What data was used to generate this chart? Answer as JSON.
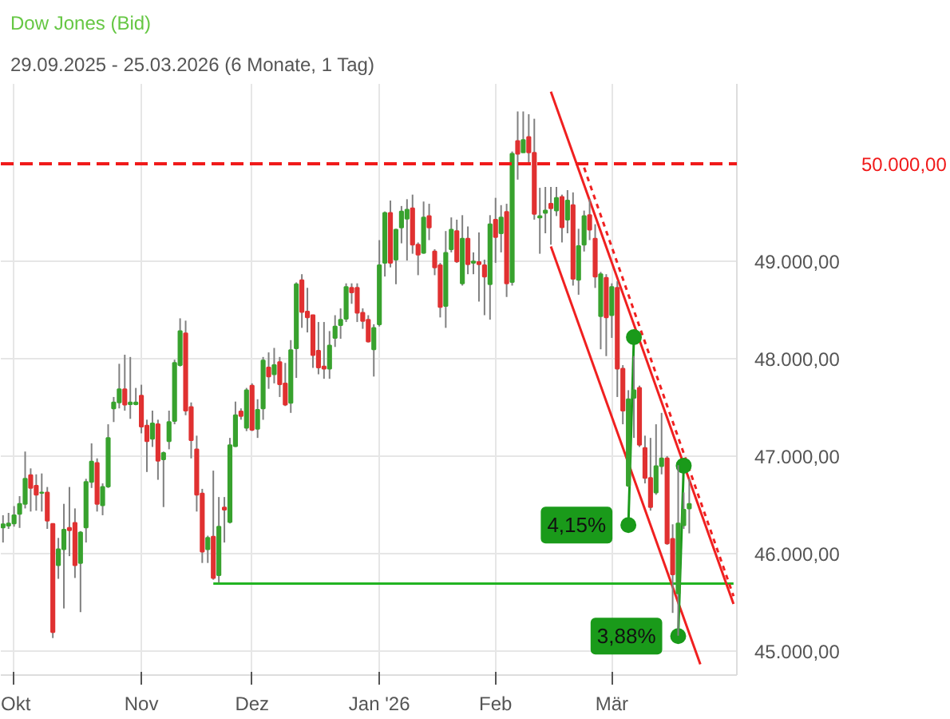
{
  "chart_data": {
    "type": "candlestick",
    "title": "Dow Jones (Bid)",
    "subtitle": "29.09.2025 - 25.03.2026  (6 Monate, 1 Tag)",
    "categories": [
      null,
      null,
      "Okt",
      null,
      null,
      null,
      null,
      null,
      null,
      null,
      null,
      null,
      null,
      null,
      null,
      null,
      null,
      null,
      null,
      null,
      null,
      null,
      null,
      null,
      null,
      "Nov",
      null,
      null,
      null,
      null,
      null,
      null,
      null,
      null,
      null,
      null,
      null,
      null,
      null,
      null,
      null,
      null,
      null,
      null,
      null,
      "Dez",
      null,
      null,
      null,
      null,
      null,
      null,
      null,
      null,
      null,
      null,
      null,
      null,
      null,
      null,
      null,
      null,
      null,
      null,
      null,
      null,
      null,
      null,
      "Jan '26",
      null,
      null,
      null,
      null,
      null,
      null,
      null,
      null,
      null,
      null,
      null,
      null,
      null,
      null,
      null,
      null,
      null,
      null,
      null,
      null,
      "Feb",
      null,
      null,
      null,
      null,
      null,
      null,
      null,
      null,
      null,
      null,
      null,
      null,
      null,
      null,
      null,
      null,
      null,
      null,
      null,
      null,
      "Mär",
      null,
      null,
      null,
      null,
      null,
      null,
      null,
      null,
      null,
      null,
      null,
      null,
      null,
      null,
      null,
      null,
      null,
      null,
      null,
      null,
      null,
      null
    ],
    "ohlc": [
      [
        46265,
        46391,
        46111,
        46298
      ],
      [
        46284,
        46415,
        46251,
        46307
      ],
      [
        46307,
        46485,
        46274,
        46391
      ],
      [
        46405,
        46587,
        46261,
        46508
      ],
      [
        46508,
        47045,
        46461,
        46765
      ],
      [
        46802,
        46872,
        46429,
        46671
      ],
      [
        46694,
        46811,
        46438,
        46601
      ],
      [
        46620,
        46820,
        46429,
        46625
      ],
      [
        46625,
        46681,
        46251,
        46335
      ],
      [
        46303,
        46303,
        45130,
        45191
      ],
      [
        45878,
        46158,
        45738,
        46041
      ],
      [
        46041,
        46508,
        45434,
        46242
      ],
      [
        46261,
        46681,
        45971,
        46237
      ],
      [
        46312,
        46461,
        45747,
        45878
      ],
      [
        45901,
        46228,
        45396,
        46214
      ],
      [
        46265,
        46765,
        46111,
        46732
      ],
      [
        46732,
        47129,
        46671,
        46942
      ],
      [
        46928,
        46975,
        46429,
        46508
      ],
      [
        46494,
        46718,
        46391,
        46681
      ],
      [
        46685,
        47325,
        46671,
        47185
      ],
      [
        47488,
        47605,
        47348,
        47549
      ],
      [
        47549,
        47946,
        47488,
        47684
      ],
      [
        47684,
        48039,
        47465,
        47526
      ],
      [
        47530,
        48016,
        47381,
        47549
      ],
      [
        47530,
        47698,
        47520,
        47549
      ],
      [
        47619,
        47731,
        47232,
        47302
      ],
      [
        47311,
        47372,
        46835,
        47152
      ],
      [
        47176,
        47465,
        47092,
        47334
      ],
      [
        47325,
        47372,
        46755,
        46951
      ],
      [
        46965,
        47045,
        46475,
        47031
      ],
      [
        47152,
        47465,
        47068,
        47348
      ],
      [
        47358,
        47988,
        47325,
        47955
      ],
      [
        47932,
        48413,
        47918,
        48282
      ],
      [
        48259,
        48389,
        47418,
        47465
      ],
      [
        47502,
        47549,
        46975,
        47162
      ],
      [
        47068,
        47208,
        46429,
        46601
      ],
      [
        46615,
        46662,
        45901,
        46018
      ],
      [
        46041,
        46181,
        45901,
        46158
      ],
      [
        46172,
        46849,
        45729,
        45747
      ],
      [
        45775,
        46578,
        45700,
        46274
      ],
      [
        46470,
        46578,
        46111,
        46447
      ],
      [
        46321,
        47185,
        46307,
        47110
      ],
      [
        47101,
        47558,
        47092,
        47418
      ],
      [
        47456,
        47488,
        47372,
        47409
      ],
      [
        47288,
        47698,
        47255,
        47675
      ],
      [
        47722,
        47745,
        47255,
        47269
      ],
      [
        47278,
        47582,
        47185,
        47474
      ],
      [
        47488,
        48016,
        47371,
        47979
      ],
      [
        47909,
        48063,
        47689,
        47815
      ],
      [
        47838,
        48109,
        47745,
        47932
      ],
      [
        47964,
        48016,
        47605,
        47736
      ],
      [
        47745,
        47955,
        47512,
        47526
      ],
      [
        47545,
        48189,
        47442,
        48086
      ],
      [
        48105,
        48782,
        47801,
        48763
      ],
      [
        48805,
        48866,
        48315,
        48478
      ],
      [
        48483,
        48726,
        48268,
        48422
      ],
      [
        48445,
        48445,
        47904,
        48035
      ],
      [
        48081,
        48375,
        47838,
        47909
      ],
      [
        47918,
        48375,
        47792,
        47895
      ],
      [
        47895,
        48282,
        47792,
        48133
      ],
      [
        48212,
        48445,
        48119,
        48329
      ],
      [
        48343,
        48515,
        48203,
        48399
      ],
      [
        48408,
        48772,
        48375,
        48735
      ],
      [
        48726,
        48772,
        48562,
        48679
      ],
      [
        48726,
        48772,
        48375,
        48469
      ],
      [
        48469,
        48515,
        48305,
        48385
      ],
      [
        48399,
        48445,
        48165,
        48175
      ],
      [
        48095,
        48352,
        47815,
        48315
      ],
      [
        48352,
        49216,
        48329,
        48959
      ],
      [
        48982,
        49510,
        48842,
        49496
      ],
      [
        49496,
        49622,
        48936,
        48982
      ],
      [
        49015,
        49332,
        48763,
        49323
      ],
      [
        49346,
        49566,
        49183,
        49510
      ],
      [
        49435,
        49636,
        49006,
        49528
      ],
      [
        49542,
        49683,
        49076,
        49169
      ],
      [
        49169,
        49192,
        48856,
        49066
      ],
      [
        49085,
        49612,
        49076,
        49449
      ],
      [
        49463,
        49589,
        49216,
        49346
      ],
      [
        49099,
        49122,
        48856,
        48936
      ],
      [
        48959,
        48982,
        48422,
        48529
      ],
      [
        48539,
        49309,
        48315,
        49085
      ],
      [
        49122,
        49449,
        49090,
        49323
      ],
      [
        49309,
        49426,
        48982,
        48996
      ],
      [
        48772,
        49472,
        48749,
        49230
      ],
      [
        49230,
        49356,
        48866,
        48968
      ],
      [
        48982,
        49090,
        48866,
        48996
      ],
      [
        48991,
        49295,
        48585,
        48968
      ],
      [
        48959,
        49015,
        48445,
        48842
      ],
      [
        48763,
        49472,
        48399,
        49379
      ],
      [
        49426,
        49650,
        48982,
        49248
      ],
      [
        49286,
        49575,
        49090,
        49449
      ],
      [
        49505,
        49589,
        48632,
        48772
      ],
      [
        48786,
        50126,
        48749,
        50103
      ],
      [
        50233,
        50537,
        49837,
        50103
      ],
      [
        50117,
        50537,
        50117,
        50243
      ],
      [
        50275,
        50509,
        49986,
        50117
      ],
      [
        50112,
        50462,
        49426,
        49486
      ],
      [
        49449,
        49753,
        49076,
        49463
      ],
      [
        49496,
        49762,
        49286,
        49519
      ],
      [
        49589,
        49762,
        49169,
        49542
      ],
      [
        49519,
        49762,
        49463,
        49650
      ],
      [
        49659,
        49683,
        49192,
        49347
      ],
      [
        49426,
        49729,
        49286,
        49622
      ],
      [
        49575,
        49706,
        48749,
        48819
      ],
      [
        48809,
        49332,
        48655,
        49155
      ],
      [
        49169,
        49519,
        49099,
        49463
      ],
      [
        49472,
        49636,
        49216,
        49323
      ],
      [
        49230,
        49379,
        48725,
        48842
      ],
      [
        48436,
        48889,
        48095,
        48866
      ],
      [
        48828,
        48866,
        48025,
        48422
      ],
      [
        48445,
        48772,
        48212,
        48735
      ],
      [
        48726,
        48796,
        47605,
        47895
      ],
      [
        47895,
        47932,
        47325,
        47465
      ],
      [
        46695,
        47675,
        46681,
        47582
      ],
      [
        47596,
        48025,
        47185,
        47675
      ],
      [
        47698,
        47722,
        47092,
        47115
      ],
      [
        47082,
        47208,
        46718,
        46774
      ],
      [
        46774,
        47185,
        46438,
        46475
      ],
      [
        46625,
        47325,
        46601,
        46895
      ],
      [
        46895,
        47442,
        46811,
        46975
      ],
      [
        46975,
        46998,
        46088,
        46102
      ],
      [
        46149,
        46298,
        45388,
        45784
      ],
      [
        45588,
        46905,
        45154,
        46307
      ],
      [
        46288,
        46625,
        46251,
        46447
      ],
      [
        46461,
        46765,
        46205,
        46508
      ],
      null,
      null,
      null,
      null,
      null,
      null,
      null,
      null
    ],
    "colors": [
      "#38a22e",
      "#38a22e",
      "#38a22e",
      "#38a22e",
      "#38a22e",
      "#e03131",
      "#e03131",
      "#38a22e",
      "#e03131",
      "#e03131",
      "#38a22e",
      "#38a22e",
      "#e03131",
      "#e03131",
      "#38a22e",
      "#38a22e",
      "#38a22e",
      "#e03131",
      "#38a22e",
      "#38a22e",
      "#38a22e",
      "#38a22e",
      "#e03131",
      "#38a22e",
      "#38a22e",
      "#e03131",
      "#e03131",
      "#38a22e",
      "#e03131",
      "#38a22e",
      "#38a22e",
      "#38a22e",
      "#38a22e",
      "#e03131",
      "#e03131",
      "#e03131",
      "#e03131",
      "#38a22e",
      "#e03131",
      "#38a22e",
      "#e03131",
      "#38a22e",
      "#38a22e",
      "#e03131",
      "#38a22e",
      "#e03131",
      "#38a22e",
      "#38a22e",
      "#e03131",
      "#38a22e",
      "#e03131",
      "#e03131",
      "#38a22e",
      "#38a22e",
      "#e03131",
      "#e03131",
      "#e03131",
      "#e03131",
      "#e03131",
      "#38a22e",
      "#38a22e",
      "#38a22e",
      "#38a22e",
      "#e03131",
      "#e03131",
      "#e03131",
      "#e03131",
      "#38a22e",
      "#38a22e",
      "#38a22e",
      "#e03131",
      "#38a22e",
      "#38a22e",
      "#38a22e",
      "#e03131",
      "#e03131",
      "#38a22e",
      "#e03131",
      "#e03131",
      "#e03131",
      "#38a22e",
      "#38a22e",
      "#e03131",
      "#38a22e",
      "#e03131",
      "#38a22e",
      "#e03131",
      "#e03131",
      "#38a22e",
      "#e03131",
      "#38a22e",
      "#e03131",
      "#38a22e",
      "#e03131",
      "#38a22e",
      "#e03131",
      "#e03131",
      "#38a22e",
      "#38a22e",
      "#e03131",
      "#38a22e",
      "#e03131",
      "#38a22e",
      "#e03131",
      "#38a22e",
      "#38a22e",
      "#e03131",
      "#e03131",
      "#38a22e",
      "#e03131",
      "#38a22e",
      "#e03131",
      "#e03131",
      "#38a22e",
      "#38a22e",
      "#e03131",
      "#e03131",
      "#e03131",
      "#38a22e",
      "#38a22e",
      "#e03131",
      "#e03131",
      "#38a22e",
      "#38a22e",
      "#38a22e",
      null,
      null,
      null,
      null,
      null,
      null,
      null,
      null
    ],
    "series": [
      {
        "type": "line",
        "color": "#22b422",
        "line_style": "solid",
        "values": [
          null,
          null,
          null,
          null,
          null,
          null,
          null,
          null,
          null,
          null,
          null,
          null,
          null,
          null,
          null,
          null,
          null,
          null,
          null,
          null,
          null,
          null,
          null,
          null,
          null,
          null,
          null,
          null,
          null,
          null,
          null,
          null,
          null,
          null,
          null,
          null,
          null,
          null,
          45690,
          null,
          null,
          null,
          null,
          null,
          null,
          null,
          null,
          null,
          null,
          null,
          null,
          null,
          null,
          null,
          null,
          null,
          null,
          null,
          null,
          null,
          null,
          null,
          null,
          null,
          null,
          null,
          null,
          null,
          null,
          null,
          null,
          null,
          null,
          null,
          null,
          null,
          null,
          null,
          null,
          null,
          null,
          null,
          null,
          null,
          null,
          null,
          null,
          null,
          null,
          null,
          null,
          null,
          null,
          null,
          null,
          null,
          null,
          null,
          null,
          null,
          null,
          null,
          null,
          null,
          null,
          null,
          null,
          null,
          null,
          null,
          null,
          null,
          null,
          null,
          null,
          null,
          null,
          null,
          null,
          null,
          null,
          null,
          null,
          null,
          null,
          null,
          null,
          null,
          null,
          null,
          null,
          null,
          45690
        ]
      },
      {
        "type": "line",
        "color": "#f02020",
        "line_style": "solid",
        "values": [
          null,
          null,
          null,
          null,
          null,
          null,
          null,
          null,
          null,
          null,
          null,
          null,
          null,
          null,
          null,
          null,
          null,
          null,
          null,
          null,
          null,
          null,
          null,
          null,
          null,
          null,
          null,
          null,
          null,
          null,
          null,
          null,
          null,
          null,
          null,
          null,
          null,
          null,
          null,
          null,
          null,
          null,
          null,
          null,
          null,
          null,
          null,
          null,
          null,
          null,
          null,
          null,
          null,
          null,
          null,
          null,
          null,
          null,
          null,
          null,
          null,
          null,
          null,
          null,
          null,
          null,
          null,
          null,
          null,
          null,
          null,
          null,
          null,
          null,
          null,
          null,
          null,
          null,
          null,
          null,
          null,
          null,
          null,
          null,
          null,
          null,
          null,
          null,
          null,
          null,
          null,
          null,
          null,
          null,
          null,
          null,
          null,
          null,
          null,
          50740,
          null,
          null,
          null,
          null,
          null,
          null,
          null,
          null,
          null,
          null,
          null,
          null,
          null,
          null,
          null,
          null,
          null,
          null,
          null,
          null,
          null,
          null,
          null,
          null,
          null,
          null,
          null,
          null,
          null,
          null,
          null,
          null,
          45480
        ]
      },
      {
        "type": "line",
        "color": "#f02020",
        "line_style": "solid",
        "values": [
          null,
          null,
          null,
          null,
          null,
          null,
          null,
          null,
          null,
          null,
          null,
          null,
          null,
          null,
          null,
          null,
          null,
          null,
          null,
          null,
          null,
          null,
          null,
          null,
          null,
          null,
          null,
          null,
          null,
          null,
          null,
          null,
          null,
          null,
          null,
          null,
          null,
          null,
          null,
          null,
          null,
          null,
          null,
          null,
          null,
          null,
          null,
          null,
          null,
          null,
          null,
          null,
          null,
          null,
          null,
          null,
          null,
          null,
          null,
          null,
          null,
          null,
          null,
          null,
          null,
          null,
          null,
          null,
          null,
          null,
          null,
          null,
          null,
          null,
          null,
          null,
          null,
          null,
          null,
          null,
          null,
          null,
          null,
          null,
          null,
          null,
          null,
          null,
          null,
          null,
          null,
          null,
          null,
          null,
          null,
          null,
          null,
          null,
          null,
          49150,
          null,
          null,
          null,
          null,
          null,
          null,
          null,
          null,
          null,
          null,
          null,
          null,
          null,
          null,
          null,
          null,
          null,
          null,
          null,
          null,
          null,
          null,
          null,
          null,
          null,
          null,
          44860,
          null,
          null,
          null,
          null,
          null,
          null
        ]
      },
      {
        "type": "line",
        "color": "#f02020",
        "line_style": "dotted",
        "values": [
          null,
          null,
          null,
          null,
          null,
          null,
          null,
          null,
          null,
          null,
          null,
          null,
          null,
          null,
          null,
          null,
          null,
          null,
          null,
          null,
          null,
          null,
          null,
          null,
          null,
          null,
          null,
          null,
          null,
          null,
          null,
          null,
          null,
          null,
          null,
          null,
          null,
          null,
          null,
          null,
          null,
          null,
          null,
          null,
          null,
          null,
          null,
          null,
          null,
          null,
          null,
          null,
          null,
          null,
          null,
          null,
          null,
          null,
          null,
          null,
          null,
          null,
          null,
          null,
          null,
          null,
          null,
          null,
          null,
          null,
          null,
          null,
          null,
          null,
          null,
          null,
          null,
          null,
          null,
          null,
          null,
          null,
          null,
          null,
          null,
          null,
          null,
          null,
          null,
          null,
          null,
          null,
          null,
          null,
          null,
          null,
          null,
          null,
          null,
          null,
          null,
          null,
          null,
          null,
          null,
          49960,
          null,
          null,
          null,
          null,
          null,
          null,
          null,
          null,
          null,
          null,
          null,
          null,
          null,
          null,
          null,
          null,
          null,
          null,
          null,
          null,
          null,
          null,
          null,
          null,
          null,
          null,
          45560
        ]
      },
      {
        "type": "line",
        "color": "#1a9a1a",
        "line_style": "solid",
        "marker": "circle",
        "values": [
          null,
          null,
          null,
          null,
          null,
          null,
          null,
          null,
          null,
          null,
          null,
          null,
          null,
          null,
          null,
          null,
          null,
          null,
          null,
          null,
          null,
          null,
          null,
          null,
          null,
          null,
          null,
          null,
          null,
          null,
          null,
          null,
          null,
          null,
          null,
          null,
          null,
          null,
          null,
          null,
          null,
          null,
          null,
          null,
          null,
          null,
          null,
          null,
          null,
          null,
          null,
          null,
          null,
          null,
          null,
          null,
          null,
          null,
          null,
          null,
          null,
          null,
          null,
          null,
          null,
          null,
          null,
          null,
          null,
          null,
          null,
          null,
          null,
          null,
          null,
          null,
          null,
          null,
          null,
          null,
          null,
          null,
          null,
          null,
          null,
          null,
          null,
          null,
          null,
          null,
          null,
          null,
          null,
          null,
          null,
          null,
          null,
          null,
          null,
          null,
          null,
          null,
          null,
          null,
          null,
          null,
          null,
          null,
          null,
          null,
          null,
          null,
          null,
          46290,
          48220,
          null,
          null,
          null,
          null,
          null,
          null,
          null,
          null,
          null,
          null,
          null,
          null,
          null,
          null,
          null,
          null,
          null,
          null
        ]
      },
      {
        "type": "line",
        "color": "#1a9a1a",
        "line_style": "solid",
        "marker": "circle",
        "values": [
          null,
          null,
          null,
          null,
          null,
          null,
          null,
          null,
          null,
          null,
          null,
          null,
          null,
          null,
          null,
          null,
          null,
          null,
          null,
          null,
          null,
          null,
          null,
          null,
          null,
          null,
          null,
          null,
          null,
          null,
          null,
          null,
          null,
          null,
          null,
          null,
          null,
          null,
          null,
          null,
          null,
          null,
          null,
          null,
          null,
          null,
          null,
          null,
          null,
          null,
          null,
          null,
          null,
          null,
          null,
          null,
          null,
          null,
          null,
          null,
          null,
          null,
          null,
          null,
          null,
          null,
          null,
          null,
          null,
          null,
          null,
          null,
          null,
          null,
          null,
          null,
          null,
          null,
          null,
          null,
          null,
          null,
          null,
          null,
          null,
          null,
          null,
          null,
          null,
          null,
          null,
          null,
          null,
          null,
          null,
          null,
          null,
          null,
          null,
          null,
          null,
          null,
          null,
          null,
          null,
          null,
          null,
          null,
          null,
          null,
          null,
          null,
          null,
          null,
          null,
          null,
          null,
          null,
          null,
          null,
          null,
          null,
          45150,
          46900,
          null,
          null,
          null,
          null,
          null,
          null,
          null,
          null,
          null
        ]
      }
    ],
    "annotations": [
      "4,15%",
      "3,88%"
    ],
    "ref_lines": [
      {
        "axis": "y",
        "value": 50000,
        "label": "50.000,00",
        "color": "#f01a1a",
        "line_style": "dashed"
      }
    ],
    "ylim": [
      44750,
      50820
    ],
    "yticks": [
      {
        "value": 45000,
        "label": "45.000,00"
      },
      {
        "value": 46000,
        "label": "46.000,00"
      },
      {
        "value": 47000,
        "label": "47.000,00"
      },
      {
        "value": 48000,
        "label": "48.000,00"
      },
      {
        "value": 49000,
        "label": "49.000,00"
      }
    ],
    "grid": true
  }
}
